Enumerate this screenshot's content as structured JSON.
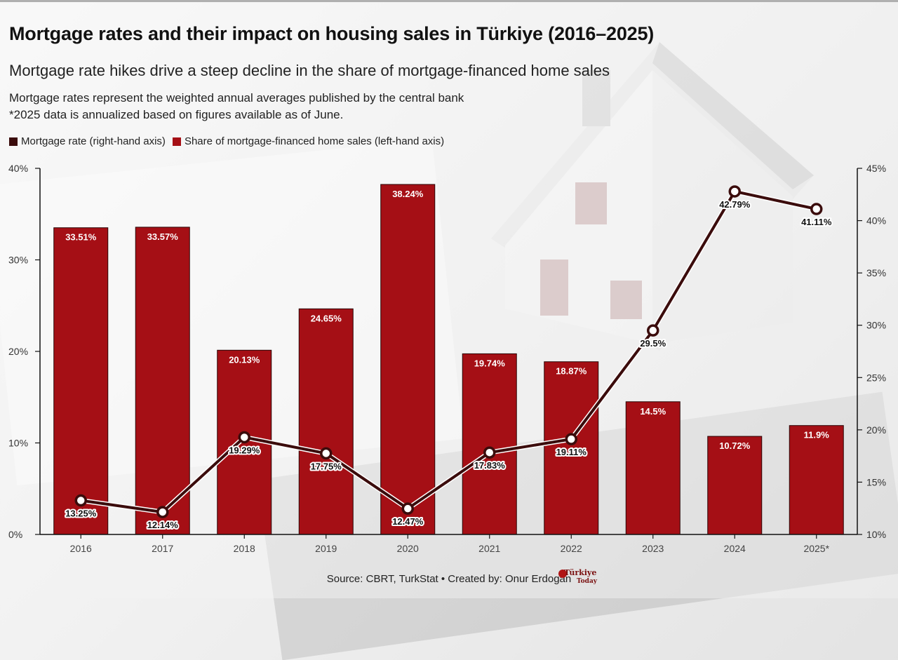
{
  "title": "Mortgage rates and their impact on housing sales in Türkiye (2016–2025)",
  "subtitle": "Mortgage rate hikes drive a steep decline in the share of mortgage-financed home sales",
  "note_line1": "Mortgage rates represent the weighted annual averages published by the central bank",
  "note_line2": "*2025 data is annualized based on figures available as of June.",
  "legend": {
    "rate": "Mortgage rate (right-hand axis)",
    "share": "Share of mortgage-financed home sales (left-hand axis)"
  },
  "source": "Source: CBRT, TurkStat • Created by: Onur Erdogan",
  "logo": {
    "line1": "Türkiye",
    "line2": "Today"
  },
  "colors": {
    "bar": "#a50f15",
    "line": "#3b0c0c"
  },
  "chart_data": {
    "type": "bar",
    "categories": [
      "2016",
      "2017",
      "2018",
      "2019",
      "2020",
      "2021",
      "2022",
      "2023",
      "2024",
      "2025*"
    ],
    "series": [
      {
        "name": "Share of mortgage-financed home sales (left-hand axis)",
        "type": "bar",
        "axis": "left",
        "values": [
          33.51,
          33.57,
          20.13,
          24.65,
          38.24,
          19.74,
          18.87,
          14.5,
          10.72,
          11.9
        ],
        "labels": [
          "33.51%",
          "33.57%",
          "20.13%",
          "24.65%",
          "38.24%",
          "19.74%",
          "18.87%",
          "14.5%",
          "10.72%",
          "11.9%"
        ]
      },
      {
        "name": "Mortgage rate (right-hand axis)",
        "type": "line",
        "axis": "right",
        "values": [
          13.25,
          12.14,
          19.29,
          17.75,
          12.47,
          17.83,
          19.11,
          29.5,
          42.79,
          41.11
        ],
        "labels": [
          "13.25%",
          "12.14%",
          "19.29%",
          "17.75%",
          "12.47%",
          "17.83%",
          "19.11%",
          "29.5%",
          "42.79%",
          "41.11%"
        ]
      }
    ],
    "left_axis": {
      "ylim": [
        0,
        40
      ],
      "ticks": [
        "0%",
        "10%",
        "20%",
        "30%",
        "40%"
      ],
      "tick_values": [
        0,
        10,
        20,
        30,
        40
      ]
    },
    "right_axis": {
      "ylim": [
        10,
        45
      ],
      "ticks": [
        "10%",
        "15%",
        "20%",
        "25%",
        "30%",
        "35%",
        "40%",
        "45%"
      ],
      "tick_values": [
        10,
        15,
        20,
        25,
        30,
        35,
        40,
        45
      ]
    },
    "grid": false,
    "legend_position": "top-left"
  }
}
